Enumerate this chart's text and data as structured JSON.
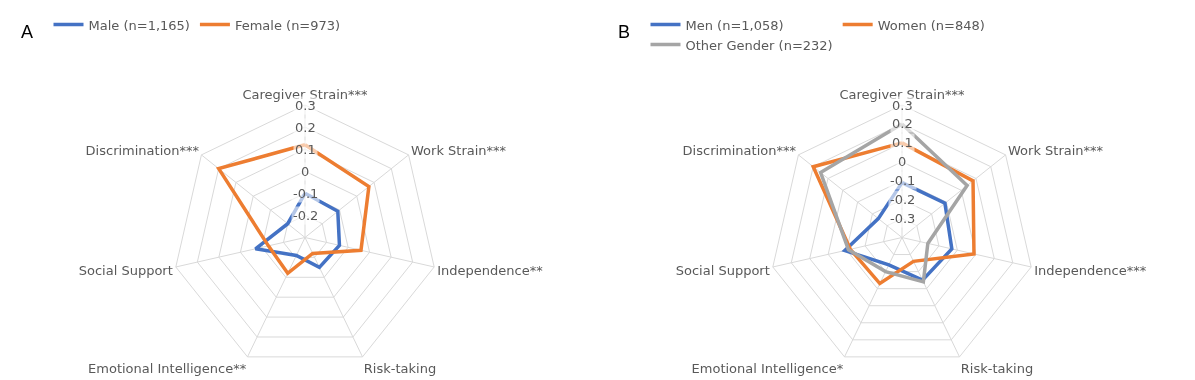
{
  "chart_data": [
    {
      "type": "radar",
      "title": "A",
      "categories": [
        "Caregiver Strain***",
        "Work Strain***",
        "Independence**",
        "Risk-taking",
        "Emotional Intelligence**",
        "Social Support",
        "Discrimination***"
      ],
      "series": [
        {
          "name": "Male (n=1,165)",
          "color": "#4472c4",
          "values": [
            -0.1,
            -0.11,
            -0.14,
            -0.15,
            -0.21,
            -0.07,
            -0.2
          ]
        },
        {
          "name": "Female (n=973)",
          "color": "#ed7d31",
          "values": [
            0.12,
            0.07,
            -0.04,
            -0.22,
            -0.12,
            -0.13,
            0.2
          ]
        }
      ],
      "ylim": [
        -0.3,
        0.3
      ],
      "yticks": [
        -0.2,
        -0.1,
        0,
        0.1,
        0.2,
        0.3
      ],
      "grid": true,
      "legend": "top",
      "marker": "none"
    },
    {
      "type": "radar",
      "title": "B",
      "categories": [
        "Caregiver Strain***",
        "Work Strain***",
        "Independence***",
        "Risk-taking",
        "Emotional Intelligence*",
        "Social Support",
        "Discrimination***"
      ],
      "series": [
        {
          "name": "Men (n=1,058)",
          "color": "#4472c4",
          "values": [
            -0.11,
            -0.11,
            -0.13,
            -0.15,
            -0.24,
            -0.09,
            -0.24
          ]
        },
        {
          "name": "Women (n=848)",
          "color": "#ed7d31",
          "values": [
            0.1,
            0.08,
            -0.01,
            -0.26,
            -0.13,
            -0.12,
            0.2
          ]
        },
        {
          "name": "Other Gender (n=232)",
          "color": "#a5a5a5",
          "values": [
            0.2,
            0.04,
            -0.26,
            -0.14,
            -0.2,
            -0.11,
            0.15
          ]
        }
      ],
      "ylim": [
        -0.4,
        0.3
      ],
      "yticks": [
        -0.3,
        -0.2,
        -0.1,
        0,
        0.1,
        0.2,
        0.3
      ],
      "grid": true,
      "legend": "top",
      "marker": "none"
    }
  ]
}
